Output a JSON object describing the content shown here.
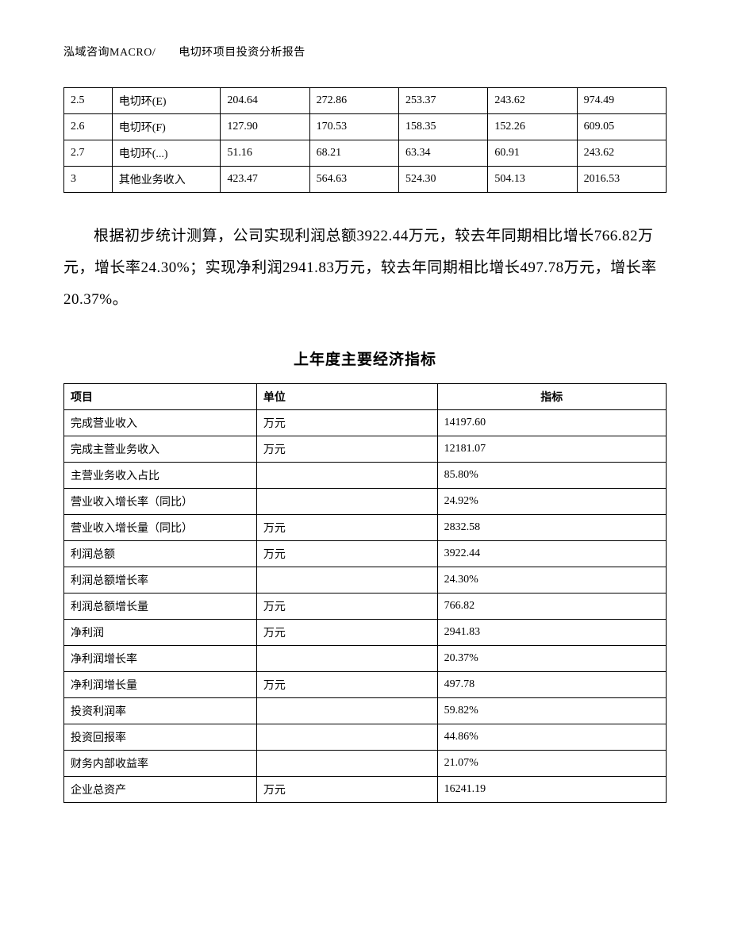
{
  "header": {
    "text": "泓域咨询MACRO/　　电切环项目投资分析报告"
  },
  "table1": {
    "col_widths_pct": [
      8,
      18,
      14.8,
      14.8,
      14.8,
      14.8,
      14.8
    ],
    "border_color": "#000000",
    "font_size_pt": 14,
    "rows": [
      [
        "2.5",
        "电切环(E)",
        "204.64",
        "272.86",
        "253.37",
        "243.62",
        "974.49"
      ],
      [
        "2.6",
        "电切环(F)",
        "127.90",
        "170.53",
        "158.35",
        "152.26",
        "609.05"
      ],
      [
        "2.7",
        "电切环(...)",
        "51.16",
        "68.21",
        "63.34",
        "60.91",
        "243.62"
      ],
      [
        "3",
        "其他业务收入",
        "423.47",
        "564.63",
        "524.30",
        "504.13",
        "2016.53"
      ]
    ]
  },
  "paragraph": {
    "text": "根据初步统计测算，公司实现利润总额3922.44万元，较去年同期相比增长766.82万元，增长率24.30%；实现净利润2941.83万元，较去年同期相比增长497.78万元，增长率20.37%。",
    "font_size_pt": 19,
    "line_height": 2.1,
    "text_indent_em": 2
  },
  "section_title": "上年度主要经济指标",
  "table2": {
    "col_widths_pct": [
      32,
      30,
      38
    ],
    "border_color": "#000000",
    "font_size_pt": 14,
    "headers": [
      "项目",
      "单位",
      "指标"
    ],
    "header_align": [
      "left",
      "left",
      "center"
    ],
    "rows": [
      [
        "完成营业收入",
        "万元",
        "14197.60"
      ],
      [
        "完成主营业务收入",
        "万元",
        "12181.07"
      ],
      [
        "主营业务收入占比",
        "",
        "85.80%"
      ],
      [
        "营业收入增长率（同比）",
        "",
        "24.92%"
      ],
      [
        "营业收入增长量（同比）",
        "万元",
        "2832.58"
      ],
      [
        "利润总额",
        "万元",
        "3922.44"
      ],
      [
        "利润总额增长率",
        "",
        "24.30%"
      ],
      [
        "利润总额增长量",
        "万元",
        "766.82"
      ],
      [
        "净利润",
        "万元",
        "2941.83"
      ],
      [
        "净利润增长率",
        "",
        "20.37%"
      ],
      [
        "净利润增长量",
        "万元",
        "497.78"
      ],
      [
        "投资利润率",
        "",
        "59.82%"
      ],
      [
        "投资回报率",
        "",
        "44.86%"
      ],
      [
        "财务内部收益率",
        "",
        "21.07%"
      ],
      [
        "企业总资产",
        "万元",
        "16241.19"
      ]
    ]
  },
  "colors": {
    "text": "#000000",
    "background": "#ffffff",
    "border": "#000000"
  }
}
